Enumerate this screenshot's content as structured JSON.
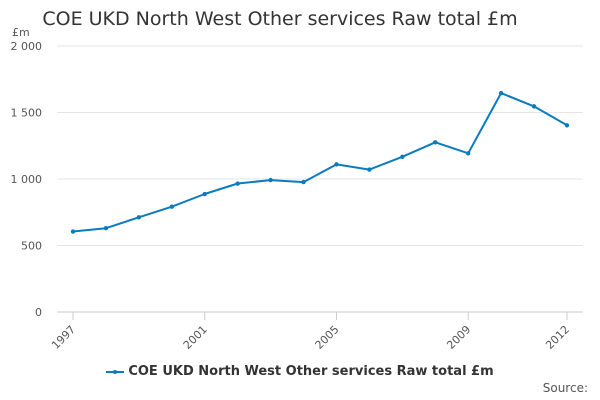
{
  "chart_data": {
    "type": "line",
    "title": "COE UKD North West Other services Raw total £m",
    "ylabel": "£m",
    "xlabel": "",
    "ylim": [
      0,
      2000
    ],
    "yticks": [
      0,
      500,
      1000,
      1500,
      2000
    ],
    "ytick_labels": [
      "0",
      "500",
      "1 000",
      "1 500",
      "2 000"
    ],
    "xticks": [
      "1997",
      "2001",
      "2005",
      "2009",
      "2012"
    ],
    "x": [
      "1997",
      "1998",
      "1999",
      "2000",
      "2001",
      "2002",
      "2003",
      "2004",
      "2005",
      "2006",
      "2007",
      "2008",
      "2009",
      "2010",
      "2011",
      "2012"
    ],
    "series": [
      {
        "name": "COE UKD North West Other services Raw total £m",
        "color": "#0b7bbf",
        "values": [
          605,
          630,
          712,
          792,
          887,
          966,
          992,
          977,
          1110,
          1071,
          1167,
          1276,
          1193,
          1646,
          1546,
          1404
        ]
      }
    ],
    "grid": true,
    "legend": "bottom-center"
  },
  "footer": {
    "source_label": "Source:"
  }
}
